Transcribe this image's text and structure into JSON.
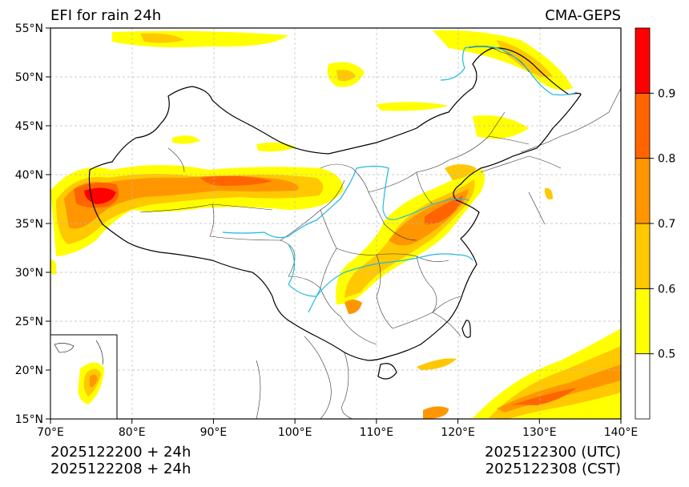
{
  "title_left": "EFI for rain 24h",
  "title_right": "CMA-GEPS",
  "info_left": [
    "2025122200 + 24h",
    "2025122208 + 24h"
  ],
  "info_right": [
    "2025122300 (UTC)",
    "2025122308 (CST)"
  ],
  "map": {
    "lon_range": [
      70,
      140
    ],
    "lat_range": [
      15,
      55
    ],
    "lon_ticks": [
      "70°E",
      "80°E",
      "90°E",
      "100°E",
      "110°E",
      "120°E",
      "130°E",
      "140°E"
    ],
    "lat_ticks": [
      "15°N",
      "20°N",
      "25°N",
      "30°N",
      "35°N",
      "40°N",
      "45°N",
      "50°N",
      "55°N"
    ],
    "gridlines": true,
    "inset": "South China Sea islands, bottom-left"
  },
  "colorbar": {
    "levels": [
      0.5,
      0.6,
      0.7,
      0.8,
      0.9
    ],
    "labels": [
      "0.5",
      "0.6",
      "0.7",
      "0.8",
      "0.9"
    ],
    "colors": [
      "#ffffff",
      "#ffff00",
      "#ffc800",
      "#ff9600",
      "#ff6400",
      "#ff0000"
    ],
    "placement": "right"
  }
}
